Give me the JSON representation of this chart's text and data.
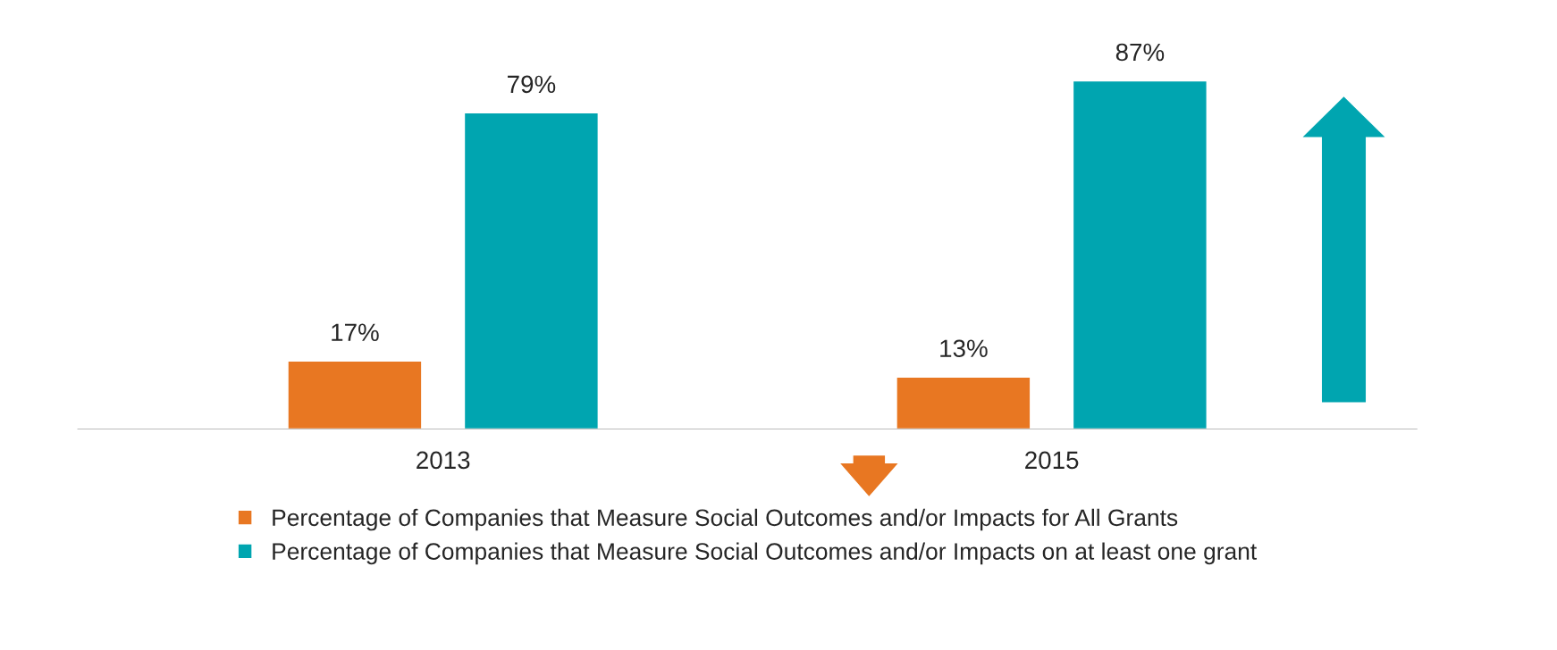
{
  "chart_data": {
    "type": "bar",
    "categories": [
      "2013",
      "2015"
    ],
    "series": [
      {
        "name": "Percentage of Companies that Measure Social Outcomes and/or Impacts for All Grants",
        "color": "#e87722",
        "values": [
          17,
          13
        ],
        "value_labels": [
          "17%",
          "13%"
        ]
      },
      {
        "name": "Percentage of Companies that Measure Social Outcomes and/or Impacts on at least one grant",
        "color": "#00a5b0",
        "values": [
          79,
          87
        ],
        "value_labels": [
          "79%",
          "87%"
        ]
      }
    ],
    "legend": "bottom",
    "grid": false,
    "tick_labels": "x"
  }
}
